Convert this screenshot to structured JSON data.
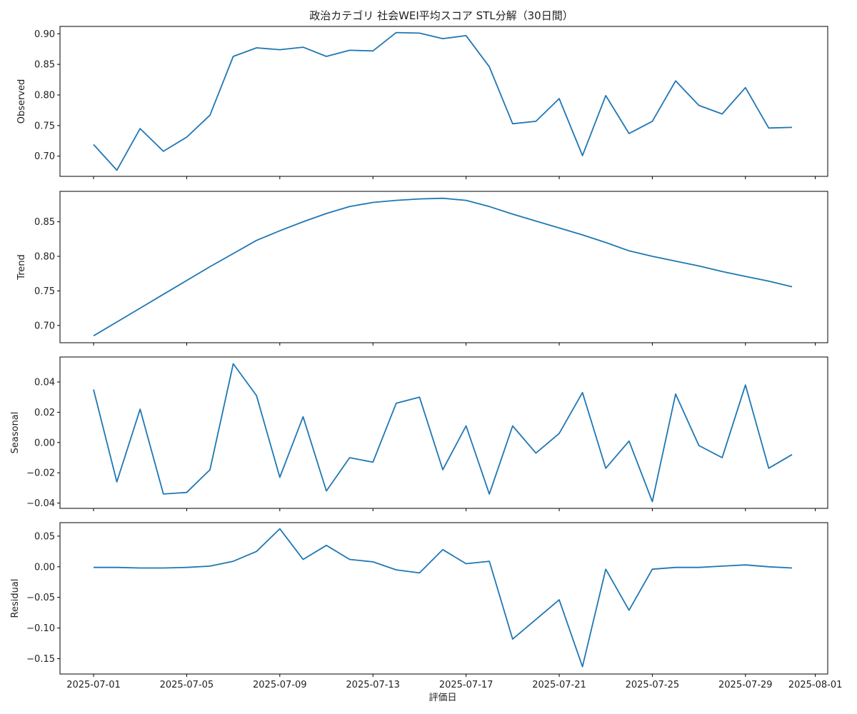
{
  "figure": {
    "title": "政治カテゴリ 社会WEI平均スコア STL分解（30日間）",
    "xlabel": "評価日",
    "x_tick_labels": [
      "2025-07-01",
      "2025-07-05",
      "2025-07-09",
      "2025-07-13",
      "2025-07-17",
      "2025-07-21",
      "2025-07-25",
      "2025-07-29",
      "2025-08-01"
    ]
  },
  "colors": {
    "line": "#1f77b4",
    "axis": "#000000",
    "background": "#ffffff"
  },
  "chart_data": [
    {
      "type": "line",
      "ylabel": "Observed",
      "x": [
        "2025-07-01",
        "2025-07-02",
        "2025-07-03",
        "2025-07-04",
        "2025-07-05",
        "2025-07-06",
        "2025-07-07",
        "2025-07-08",
        "2025-07-09",
        "2025-07-10",
        "2025-07-11",
        "2025-07-12",
        "2025-07-13",
        "2025-07-14",
        "2025-07-15",
        "2025-07-16",
        "2025-07-17",
        "2025-07-18",
        "2025-07-19",
        "2025-07-20",
        "2025-07-21",
        "2025-07-22",
        "2025-07-23",
        "2025-07-24",
        "2025-07-25",
        "2025-07-26",
        "2025-07-27",
        "2025-07-28",
        "2025-07-29",
        "2025-07-30",
        "2025-07-31"
      ],
      "values": [
        0.719,
        0.677,
        0.745,
        0.708,
        0.731,
        0.767,
        0.863,
        0.877,
        0.874,
        0.878,
        0.863,
        0.873,
        0.872,
        0.902,
        0.901,
        0.892,
        0.897,
        0.846,
        0.753,
        0.757,
        0.794,
        0.701,
        0.799,
        0.737,
        0.757,
        0.823,
        0.783,
        0.769,
        0.812,
        0.746,
        0.747
      ],
      "ylim": [
        0.667,
        0.912
      ],
      "yticks": [
        0.7,
        0.75,
        0.8,
        0.85,
        0.9
      ],
      "ytick_labels": [
        "0.70",
        "0.75",
        "0.80",
        "0.85",
        "0.90"
      ]
    },
    {
      "type": "line",
      "ylabel": "Trend",
      "x": [
        "2025-07-01",
        "2025-07-02",
        "2025-07-03",
        "2025-07-04",
        "2025-07-05",
        "2025-07-06",
        "2025-07-07",
        "2025-07-08",
        "2025-07-09",
        "2025-07-10",
        "2025-07-11",
        "2025-07-12",
        "2025-07-13",
        "2025-07-14",
        "2025-07-15",
        "2025-07-16",
        "2025-07-17",
        "2025-07-18",
        "2025-07-19",
        "2025-07-20",
        "2025-07-21",
        "2025-07-22",
        "2025-07-23",
        "2025-07-24",
        "2025-07-25",
        "2025-07-26",
        "2025-07-27",
        "2025-07-28",
        "2025-07-29",
        "2025-07-30",
        "2025-07-31"
      ],
      "values": [
        0.685,
        0.705,
        0.725,
        0.745,
        0.765,
        0.785,
        0.804,
        0.823,
        0.837,
        0.85,
        0.862,
        0.872,
        0.878,
        0.881,
        0.883,
        0.884,
        0.881,
        0.872,
        0.861,
        0.851,
        0.841,
        0.831,
        0.82,
        0.808,
        0.8,
        0.793,
        0.786,
        0.778,
        0.771,
        0.764,
        0.756
      ],
      "ylim": [
        0.675,
        0.894
      ],
      "yticks": [
        0.7,
        0.75,
        0.8,
        0.85
      ],
      "ytick_labels": [
        "0.70",
        "0.75",
        "0.80",
        "0.85"
      ]
    },
    {
      "type": "line",
      "ylabel": "Seasonal",
      "x": [
        "2025-07-01",
        "2025-07-02",
        "2025-07-03",
        "2025-07-04",
        "2025-07-05",
        "2025-07-06",
        "2025-07-07",
        "2025-07-08",
        "2025-07-09",
        "2025-07-10",
        "2025-07-11",
        "2025-07-12",
        "2025-07-13",
        "2025-07-14",
        "2025-07-15",
        "2025-07-16",
        "2025-07-17",
        "2025-07-18",
        "2025-07-19",
        "2025-07-20",
        "2025-07-21",
        "2025-07-22",
        "2025-07-23",
        "2025-07-24",
        "2025-07-25",
        "2025-07-26",
        "2025-07-27",
        "2025-07-28",
        "2025-07-29",
        "2025-07-30",
        "2025-07-31"
      ],
      "values": [
        0.035,
        -0.026,
        0.022,
        -0.034,
        -0.033,
        -0.018,
        0.052,
        0.031,
        -0.023,
        0.017,
        -0.032,
        -0.01,
        -0.013,
        0.026,
        0.03,
        -0.018,
        0.011,
        -0.034,
        0.011,
        -0.007,
        0.006,
        0.033,
        -0.017,
        0.001,
        -0.039,
        0.032,
        -0.002,
        -0.01,
        0.038,
        -0.017,
        -0.008
      ],
      "ylim": [
        -0.0435,
        0.0565
      ],
      "yticks": [
        -0.04,
        -0.02,
        0.0,
        0.02,
        0.04
      ],
      "ytick_labels": [
        "−0.04",
        "−0.02",
        "0.00",
        "0.02",
        "0.04"
      ]
    },
    {
      "type": "line",
      "ylabel": "Residual",
      "x": [
        "2025-07-01",
        "2025-07-02",
        "2025-07-03",
        "2025-07-04",
        "2025-07-05",
        "2025-07-06",
        "2025-07-07",
        "2025-07-08",
        "2025-07-09",
        "2025-07-10",
        "2025-07-11",
        "2025-07-12",
        "2025-07-13",
        "2025-07-14",
        "2025-07-15",
        "2025-07-16",
        "2025-07-17",
        "2025-07-18",
        "2025-07-19",
        "2025-07-20",
        "2025-07-21",
        "2025-07-22",
        "2025-07-23",
        "2025-07-24",
        "2025-07-25",
        "2025-07-26",
        "2025-07-27",
        "2025-07-28",
        "2025-07-29",
        "2025-07-30",
        "2025-07-31"
      ],
      "values": [
        -0.001,
        -0.001,
        -0.002,
        -0.002,
        -0.001,
        0.001,
        0.009,
        0.025,
        0.062,
        0.012,
        0.035,
        0.012,
        0.008,
        -0.005,
        -0.01,
        0.028,
        0.005,
        0.009,
        -0.118,
        -0.086,
        -0.054,
        -0.163,
        -0.004,
        -0.071,
        -0.004,
        -0.001,
        -0.001,
        0.001,
        0.003,
        0.0,
        -0.002
      ],
      "ylim": [
        -0.175,
        0.072
      ],
      "yticks": [
        -0.15,
        -0.1,
        -0.05,
        0.0,
        0.05
      ],
      "ytick_labels": [
        "−0.15",
        "−0.10",
        "−0.05",
        "0.00",
        "0.05"
      ]
    }
  ]
}
